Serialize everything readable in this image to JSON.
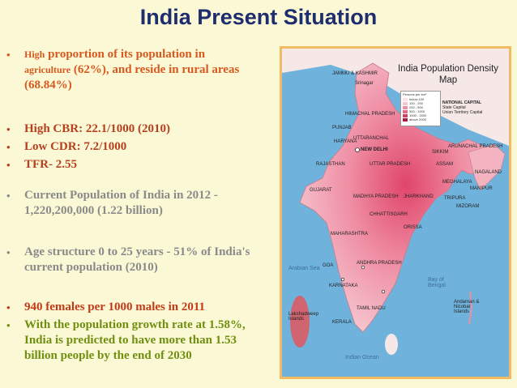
{
  "title": "India Present Situation",
  "bullets": [
    {
      "dot": "•",
      "text_small": "High",
      "text": " proportion of its population in",
      "text2_small": "agriculture",
      "text2": " (62%), and reside in rural areas (68.84%)"
    },
    {
      "dot": "•",
      "text": "High CBR: 22.1/1000 (2010)"
    },
    {
      "dot": "•",
      "text": "Low CDR: 7.2/1000"
    },
    {
      "dot": "•",
      "text": "TFR- 2.55"
    },
    {
      "dot": "•",
      "text": "Current Population of India in 2012 - 1,220,200,000 (1.22 billion)"
    },
    {
      "dot": "•",
      "text": "Age structure 0 to 25 years -  51% of India's current population  (2010)"
    },
    {
      "dot": "•",
      "text": "940 females per 1000 males in 2011"
    },
    {
      "dot": "•",
      "text": "With the population growth rate at 1.58%, India is predicted to have more than 1.53 billion people by the end of 2030"
    }
  ],
  "map": {
    "title_line1": "India Population Density",
    "title_line2": "Map",
    "legend_title": "Persons per km²",
    "legend_rows": [
      "below 100",
      "100 - 200",
      "200 - 500",
      "500 - 1000",
      "1000 - 2000",
      "above 2000"
    ],
    "key_capital": "NATIONAL CAPITAL",
    "key_state": "State Capital",
    "key_ut": "Union Territory Capital",
    "labels": {
      "jk": "JAMMU & KASHMIR",
      "srinagar": "Srinagar",
      "hp": "HIMACHAL PRADESH",
      "punjab": "PUNJAB",
      "haryana": "HARYANA",
      "uttaranchal": "UTTARANCHAL",
      "newdelhi": "NEW DELHI",
      "rajasthan": "RAJASTHAN",
      "up": "UTTAR PRADESH",
      "gujarat": "GUJARAT",
      "mp": "MADHYA PRADESH",
      "jharkhand": "JHARKHAND",
      "chhattisgarh": "CHHATTISGARH",
      "orissa": "ORISSA",
      "maharashtra": "MAHARASHTRA",
      "ap": "ANDHRA PRADESH",
      "karnataka": "KARNATAKA",
      "tamilnadu": "TAMIL NADU",
      "kerala": "KERALA",
      "goa": "GOA",
      "arunachal": "ARUNACHAL PRADESH",
      "nagaland": "NAGALAND",
      "meghalaya": "MEGHALAYA",
      "sikkim": "SIKKIM",
      "assam": "ASSAM",
      "manipur": "MANIPUR",
      "tripura": "TRIPURA",
      "mizoram": "MIZORAM",
      "arabian_sea": "Arabian Sea",
      "bay": "Bay of Bengal",
      "indian_ocean": "Indian Ocean",
      "lakshadweep": "Lakshadweep Islands",
      "andaman": "Andaman & Nicobar Islands"
    }
  },
  "colors": {
    "title": "#1e2d6e",
    "bullet_orange": "#d8591f",
    "bullet_grey": "#8a8a8a",
    "bullet_red": "#c23a17",
    "bullet_green": "#6f8f0f",
    "map_border": "#f0bb63",
    "sea": "#6fb3dd"
  }
}
